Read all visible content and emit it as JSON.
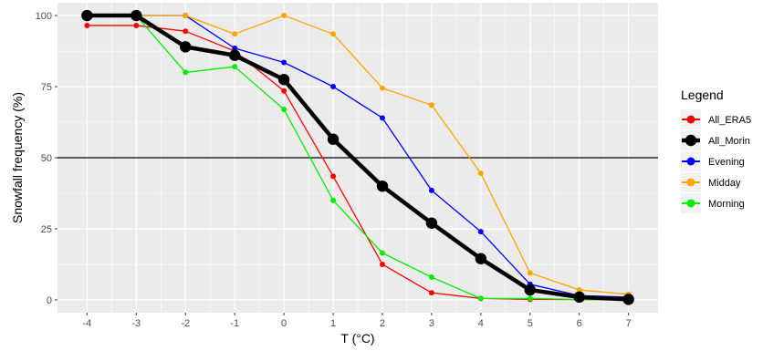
{
  "chart_data": {
    "type": "line",
    "xlabel": "T (°C)",
    "ylabel": "Snowfall frequency (%)",
    "x": [
      -4,
      -3,
      -2,
      -1,
      0,
      1,
      2,
      3,
      4,
      5,
      6,
      7
    ],
    "xlim": [
      -4.6,
      7.6
    ],
    "ylim": [
      -4.5,
      104.5
    ],
    "x_ticks": [
      -4,
      -3,
      -2,
      -1,
      0,
      1,
      2,
      3,
      4,
      5,
      6,
      7
    ],
    "y_ticks": [
      0,
      25,
      50,
      75,
      100
    ],
    "reference_line_y": 50,
    "grid": true,
    "legend_title": "Legend",
    "legend_position": "right",
    "series": [
      {
        "name": "All_ERA5",
        "color": "#ff0000",
        "emphasis": false,
        "values": [
          96.5,
          96.5,
          94.5,
          87.5,
          73.5,
          43.5,
          12.5,
          2.5,
          0.5,
          0.2,
          0.1,
          0.1
        ]
      },
      {
        "name": "Morning",
        "color": "#00ee00",
        "emphasis": false,
        "values": [
          100,
          100,
          80,
          82,
          67,
          35,
          16.5,
          8,
          0.5,
          0.5,
          0.1,
          0.1
        ]
      },
      {
        "name": "Evening",
        "color": "#0000ff",
        "emphasis": false,
        "values": [
          100,
          100,
          100,
          88.5,
          83.5,
          75,
          64,
          38.5,
          24,
          5.5,
          1.5,
          1
        ]
      },
      {
        "name": "Midday",
        "color": "#ffa500",
        "emphasis": false,
        "values": [
          100,
          100,
          100,
          93.5,
          100,
          93.5,
          74.5,
          68.5,
          44.5,
          9.5,
          3.5,
          2
        ]
      },
      {
        "name": "All_Morin",
        "color": "#000000",
        "emphasis": true,
        "values": [
          100,
          100,
          89,
          86,
          77.5,
          56.5,
          40,
          27,
          14.5,
          3.5,
          1,
          0.2
        ]
      }
    ],
    "legend_order": [
      "All_ERA5",
      "All_Morin",
      "Evening",
      "Midday",
      "Morning"
    ]
  }
}
